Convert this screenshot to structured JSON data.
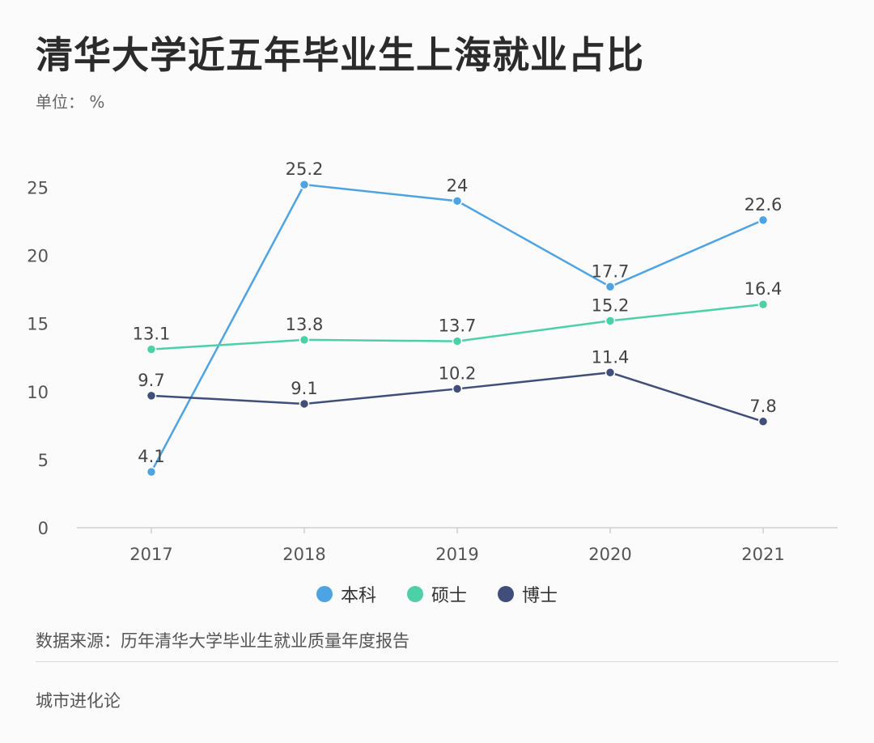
{
  "header": {
    "title": "清华大学近五年毕业生上海就业占比",
    "unit": "单位： %"
  },
  "chart_data": {
    "type": "line",
    "title": "清华大学近五年毕业生上海就业占比",
    "x": [
      "2017",
      "2018",
      "2019",
      "2020",
      "2021"
    ],
    "ylim": [
      0,
      25
    ],
    "yticks": [
      0,
      5,
      10,
      15,
      20,
      25
    ],
    "grid": false,
    "legend_position": "bottom",
    "series": [
      {
        "name": "本科",
        "color": "#4ea3e2",
        "values": [
          4.1,
          25.2,
          24,
          17.7,
          22.6
        ],
        "labels": [
          "4.1",
          "25.2",
          "24",
          "17.7",
          "22.6"
        ]
      },
      {
        "name": "硕士",
        "color": "#4fcfa7",
        "values": [
          13.1,
          13.8,
          13.7,
          15.2,
          16.4
        ],
        "labels": [
          "13.1",
          "13.8",
          "13.7",
          "15.2",
          "16.4"
        ]
      },
      {
        "name": "博士",
        "color": "#3f4f7a",
        "values": [
          9.7,
          9.1,
          10.2,
          11.4,
          7.8
        ],
        "labels": [
          "9.7",
          "9.1",
          "10.2",
          "11.4",
          "7.8"
        ]
      }
    ]
  },
  "footer": {
    "source": "数据来源：历年清华大学毕业生就业质量年度报告",
    "brand": "城市进化论"
  }
}
